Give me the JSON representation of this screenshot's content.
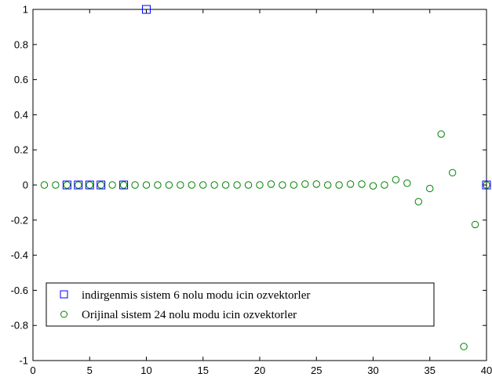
{
  "chart_data": {
    "type": "scatter",
    "title": "",
    "xlabel": "",
    "ylabel": "",
    "xlim": [
      0,
      40
    ],
    "ylim": [
      -1,
      1
    ],
    "xticks": [
      0,
      5,
      10,
      15,
      20,
      25,
      30,
      35,
      40
    ],
    "yticks": [
      1,
      0.8,
      0.6,
      0.4,
      0.2,
      0,
      -0.2,
      -0.4,
      -0.6,
      -0.8,
      -1
    ],
    "xtick_labels": [
      "0",
      "5",
      "10",
      "15",
      "20",
      "25",
      "30",
      "35",
      "40"
    ],
    "ytick_labels": [
      "1",
      "0.8",
      "0.6",
      "0.4",
      "0.2",
      "0",
      "-0.2",
      "-0.4",
      "-0.6",
      "-0.8",
      "-1"
    ],
    "grid": false,
    "legend_position": "bottom-left",
    "series": [
      {
        "name": "indirgenmis sistem 6 nolu modu icin ozvektorler",
        "marker": "square",
        "color": "#0000ff",
        "x": [
          3,
          4,
          5,
          6,
          8,
          10,
          40
        ],
        "y": [
          0,
          0,
          0,
          0,
          0,
          1,
          0
        ]
      },
      {
        "name": "Orijinal sistem 24 nolu modu icin ozvektorler",
        "marker": "circle",
        "color": "#008000",
        "x": [
          1,
          2,
          3,
          4,
          5,
          6,
          7,
          8,
          9,
          10,
          11,
          12,
          13,
          14,
          15,
          16,
          17,
          18,
          19,
          20,
          21,
          22,
          23,
          24,
          25,
          26,
          27,
          28,
          29,
          30,
          31,
          32,
          33,
          34,
          35,
          36,
          37,
          38,
          39,
          40
        ],
        "y": [
          0,
          0,
          0,
          0,
          0,
          0,
          0,
          0,
          0,
          0,
          0,
          0,
          0,
          0,
          0,
          0,
          0,
          0,
          0,
          0,
          0.005,
          0,
          0,
          0.005,
          0.005,
          0,
          0,
          0.005,
          0.005,
          -0.005,
          0,
          0.03,
          0.01,
          -0.095,
          -0.02,
          0.29,
          0.07,
          -0.92,
          -0.225,
          0
        ]
      }
    ]
  }
}
